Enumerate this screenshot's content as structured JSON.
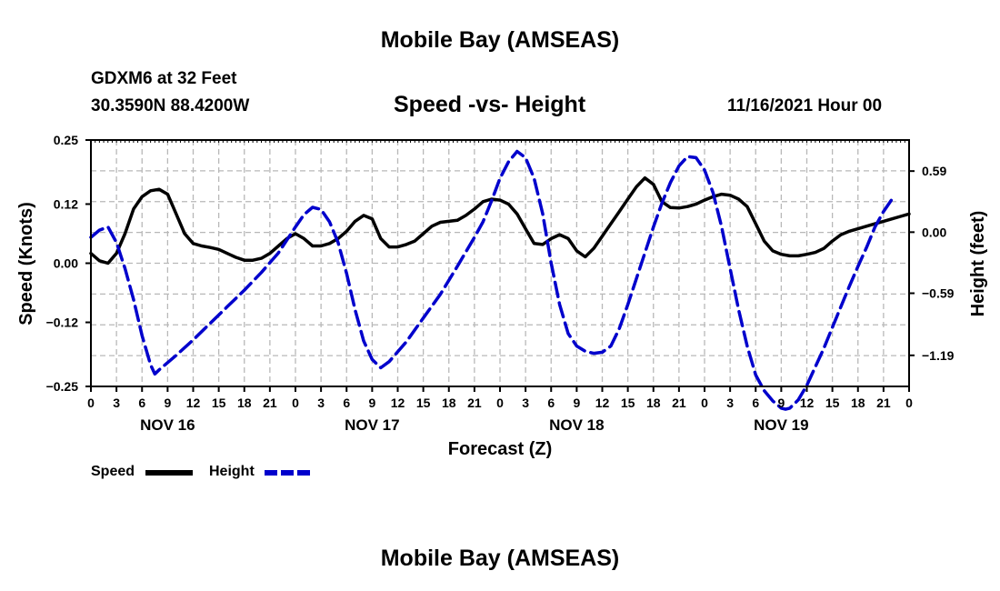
{
  "header": {
    "title": "Mobile Bay (AMSEAS)",
    "station": "GDXM6 at 32 Feet",
    "coords": "30.3590N  88.4200W",
    "chart_title": "Speed -vs- Height",
    "run_time": "11/16/2021 Hour 00"
  },
  "footer": {
    "title": "Mobile Bay (AMSEAS)"
  },
  "legend": {
    "speed_label": "Speed",
    "height_label": "Height",
    "speed_color": "#000000",
    "height_color": "#0000cc"
  },
  "chart_data": {
    "type": "line",
    "title": "Speed -vs- Height",
    "xlabel": "Forecast (Z)",
    "ylabel_left": "Speed (Knots)",
    "ylabel_right": "Height (feet)",
    "x_unit": "hours since 11/16/2021 00Z",
    "xlim": [
      0,
      96
    ],
    "ylim_left": [
      -0.25,
      0.25
    ],
    "ylim_right": [
      -1.49,
      0.89
    ],
    "x_ticks": [
      0,
      3,
      6,
      9,
      12,
      15,
      18,
      21,
      24,
      27,
      30,
      33,
      36,
      39,
      42,
      45,
      48,
      51,
      54,
      57,
      60,
      63,
      66,
      69,
      72,
      75,
      78,
      81,
      84,
      87,
      90,
      93,
      96
    ],
    "x_tick_labels": [
      "0",
      "3",
      "6",
      "9",
      "12",
      "15",
      "18",
      "21",
      "0",
      "3",
      "6",
      "9",
      "12",
      "15",
      "18",
      "21",
      "0",
      "3",
      "6",
      "9",
      "12",
      "15",
      "18",
      "21",
      "0",
      "3",
      "6",
      "9",
      "12",
      "15",
      "18",
      "21",
      "0"
    ],
    "day_labels": [
      {
        "x": 9,
        "label": "NOV 16"
      },
      {
        "x": 33,
        "label": "NOV 17"
      },
      {
        "x": 57,
        "label": "NOV 18"
      },
      {
        "x": 81,
        "label": "NOV 19"
      }
    ],
    "y_left_ticks": [
      {
        "value": 0.25,
        "label": "0.25"
      },
      {
        "value": 0.12,
        "label": "0.12"
      },
      {
        "value": 0.0,
        "label": "0.00"
      },
      {
        "value": -0.12,
        "label": "−0.12"
      },
      {
        "value": -0.25,
        "label": "−0.25"
      }
    ],
    "y_right_ticks": [
      {
        "value": 0.59,
        "label": "0.59"
      },
      {
        "value": 0.0,
        "label": "0.00"
      },
      {
        "value": -0.59,
        "label": "−0.59"
      },
      {
        "value": -1.19,
        "label": "−1.19"
      }
    ],
    "grid": true,
    "series": [
      {
        "name": "Speed",
        "axis": "left",
        "color": "#000000",
        "dash": "solid",
        "points": [
          [
            0,
            0.02
          ],
          [
            1,
            0.005
          ],
          [
            2,
            0.0
          ],
          [
            3,
            0.02
          ],
          [
            4,
            0.06
          ],
          [
            5,
            0.11
          ],
          [
            6,
            0.135
          ],
          [
            7,
            0.147
          ],
          [
            8,
            0.15
          ],
          [
            9,
            0.14
          ],
          [
            10,
            0.1
          ],
          [
            11,
            0.06
          ],
          [
            12,
            0.04
          ],
          [
            13,
            0.035
          ],
          [
            14,
            0.032
          ],
          [
            15,
            0.028
          ],
          [
            16,
            0.02
          ],
          [
            17,
            0.012
          ],
          [
            18,
            0.006
          ],
          [
            19,
            0.006
          ],
          [
            20,
            0.01
          ],
          [
            21,
            0.02
          ],
          [
            22,
            0.035
          ],
          [
            23,
            0.05
          ],
          [
            24,
            0.06
          ],
          [
            25,
            0.05
          ],
          [
            26,
            0.035
          ],
          [
            27,
            0.035
          ],
          [
            28,
            0.04
          ],
          [
            29,
            0.05
          ],
          [
            30,
            0.065
          ],
          [
            31,
            0.085
          ],
          [
            32,
            0.097
          ],
          [
            33,
            0.09
          ],
          [
            34,
            0.05
          ],
          [
            35,
            0.033
          ],
          [
            36,
            0.033
          ],
          [
            37,
            0.038
          ],
          [
            38,
            0.045
          ],
          [
            39,
            0.06
          ],
          [
            40,
            0.075
          ],
          [
            41,
            0.083
          ],
          [
            42,
            0.085
          ],
          [
            43,
            0.087
          ],
          [
            44,
            0.097
          ],
          [
            45,
            0.11
          ],
          [
            46,
            0.125
          ],
          [
            47,
            0.13
          ],
          [
            48,
            0.128
          ],
          [
            49,
            0.12
          ],
          [
            50,
            0.1
          ],
          [
            51,
            0.07
          ],
          [
            52,
            0.04
          ],
          [
            53,
            0.038
          ],
          [
            54,
            0.05
          ],
          [
            55,
            0.058
          ],
          [
            56,
            0.05
          ],
          [
            57,
            0.025
          ],
          [
            58,
            0.013
          ],
          [
            59,
            0.03
          ],
          [
            60,
            0.055
          ],
          [
            61,
            0.08
          ],
          [
            62,
            0.105
          ],
          [
            63,
            0.13
          ],
          [
            64,
            0.155
          ],
          [
            65,
            0.173
          ],
          [
            66,
            0.16
          ],
          [
            67,
            0.125
          ],
          [
            68,
            0.113
          ],
          [
            69,
            0.112
          ],
          [
            70,
            0.115
          ],
          [
            71,
            0.12
          ],
          [
            72,
            0.128
          ],
          [
            73,
            0.135
          ],
          [
            74,
            0.14
          ],
          [
            75,
            0.138
          ],
          [
            76,
            0.13
          ],
          [
            77,
            0.115
          ],
          [
            78,
            0.08
          ],
          [
            79,
            0.045
          ],
          [
            80,
            0.025
          ],
          [
            81,
            0.018
          ],
          [
            82,
            0.015
          ],
          [
            83,
            0.015
          ],
          [
            84,
            0.018
          ],
          [
            85,
            0.022
          ],
          [
            86,
            0.03
          ],
          [
            87,
            0.045
          ],
          [
            88,
            0.058
          ],
          [
            89,
            0.065
          ],
          [
            90,
            0.07
          ],
          [
            91,
            0.075
          ],
          [
            92,
            0.08
          ],
          [
            93,
            0.085
          ],
          [
            94,
            0.09
          ],
          [
            95,
            0.095
          ],
          [
            96,
            0.1
          ]
        ]
      },
      {
        "name": "Height",
        "axis": "right",
        "color": "#0000cc",
        "dash": "dashed",
        "points": [
          [
            0,
            -0.05
          ],
          [
            1,
            0.02
          ],
          [
            2,
            0.05
          ],
          [
            3,
            -0.1
          ],
          [
            4,
            -0.35
          ],
          [
            5,
            -0.65
          ],
          [
            6,
            -1.0
          ],
          [
            7,
            -1.28
          ],
          [
            7.5,
            -1.37
          ],
          [
            8,
            -1.33
          ],
          [
            10,
            -1.19
          ],
          [
            12,
            -1.04
          ],
          [
            14,
            -0.88
          ],
          [
            16,
            -0.72
          ],
          [
            18,
            -0.56
          ],
          [
            20,
            -0.39
          ],
          [
            22,
            -0.2
          ],
          [
            24,
            0.05
          ],
          [
            25,
            0.17
          ],
          [
            26,
            0.24
          ],
          [
            27,
            0.22
          ],
          [
            28,
            0.1
          ],
          [
            29,
            -0.1
          ],
          [
            30,
            -0.4
          ],
          [
            31,
            -0.75
          ],
          [
            32,
            -1.05
          ],
          [
            33,
            -1.23
          ],
          [
            34,
            -1.31
          ],
          [
            35,
            -1.25
          ],
          [
            37,
            -1.06
          ],
          [
            39,
            -0.83
          ],
          [
            41,
            -0.6
          ],
          [
            43,
            -0.33
          ],
          [
            45,
            -0.05
          ],
          [
            46,
            0.1
          ],
          [
            47,
            0.3
          ],
          [
            48,
            0.52
          ],
          [
            49,
            0.68
          ],
          [
            50,
            0.78
          ],
          [
            51,
            0.72
          ],
          [
            52,
            0.52
          ],
          [
            53,
            0.18
          ],
          [
            54,
            -0.3
          ],
          [
            55,
            -0.7
          ],
          [
            56,
            -0.98
          ],
          [
            57,
            -1.1
          ],
          [
            58,
            -1.15
          ],
          [
            59,
            -1.17
          ],
          [
            60,
            -1.16
          ],
          [
            61,
            -1.1
          ],
          [
            62,
            -0.93
          ],
          [
            63,
            -0.7
          ],
          [
            64,
            -0.45
          ],
          [
            65,
            -0.2
          ],
          [
            66,
            0.05
          ],
          [
            67,
            0.28
          ],
          [
            68,
            0.48
          ],
          [
            69,
            0.64
          ],
          [
            70,
            0.73
          ],
          [
            71,
            0.72
          ],
          [
            72,
            0.6
          ],
          [
            73,
            0.38
          ],
          [
            74,
            0.05
          ],
          [
            75,
            -0.35
          ],
          [
            76,
            -0.75
          ],
          [
            77,
            -1.1
          ],
          [
            78,
            -1.38
          ],
          [
            79,
            -1.53
          ],
          [
            80,
            -1.63
          ],
          [
            81,
            -1.7
          ],
          [
            81.5,
            -1.71
          ],
          [
            82,
            -1.7
          ],
          [
            83,
            -1.62
          ],
          [
            84,
            -1.48
          ],
          [
            85,
            -1.3
          ],
          [
            86,
            -1.12
          ],
          [
            87,
            -0.92
          ],
          [
            88,
            -0.72
          ],
          [
            89,
            -0.52
          ],
          [
            90,
            -0.33
          ],
          [
            91,
            -0.15
          ],
          [
            92,
            0.05
          ],
          [
            93,
            0.2
          ],
          [
            94,
            0.32
          ]
        ]
      }
    ]
  }
}
